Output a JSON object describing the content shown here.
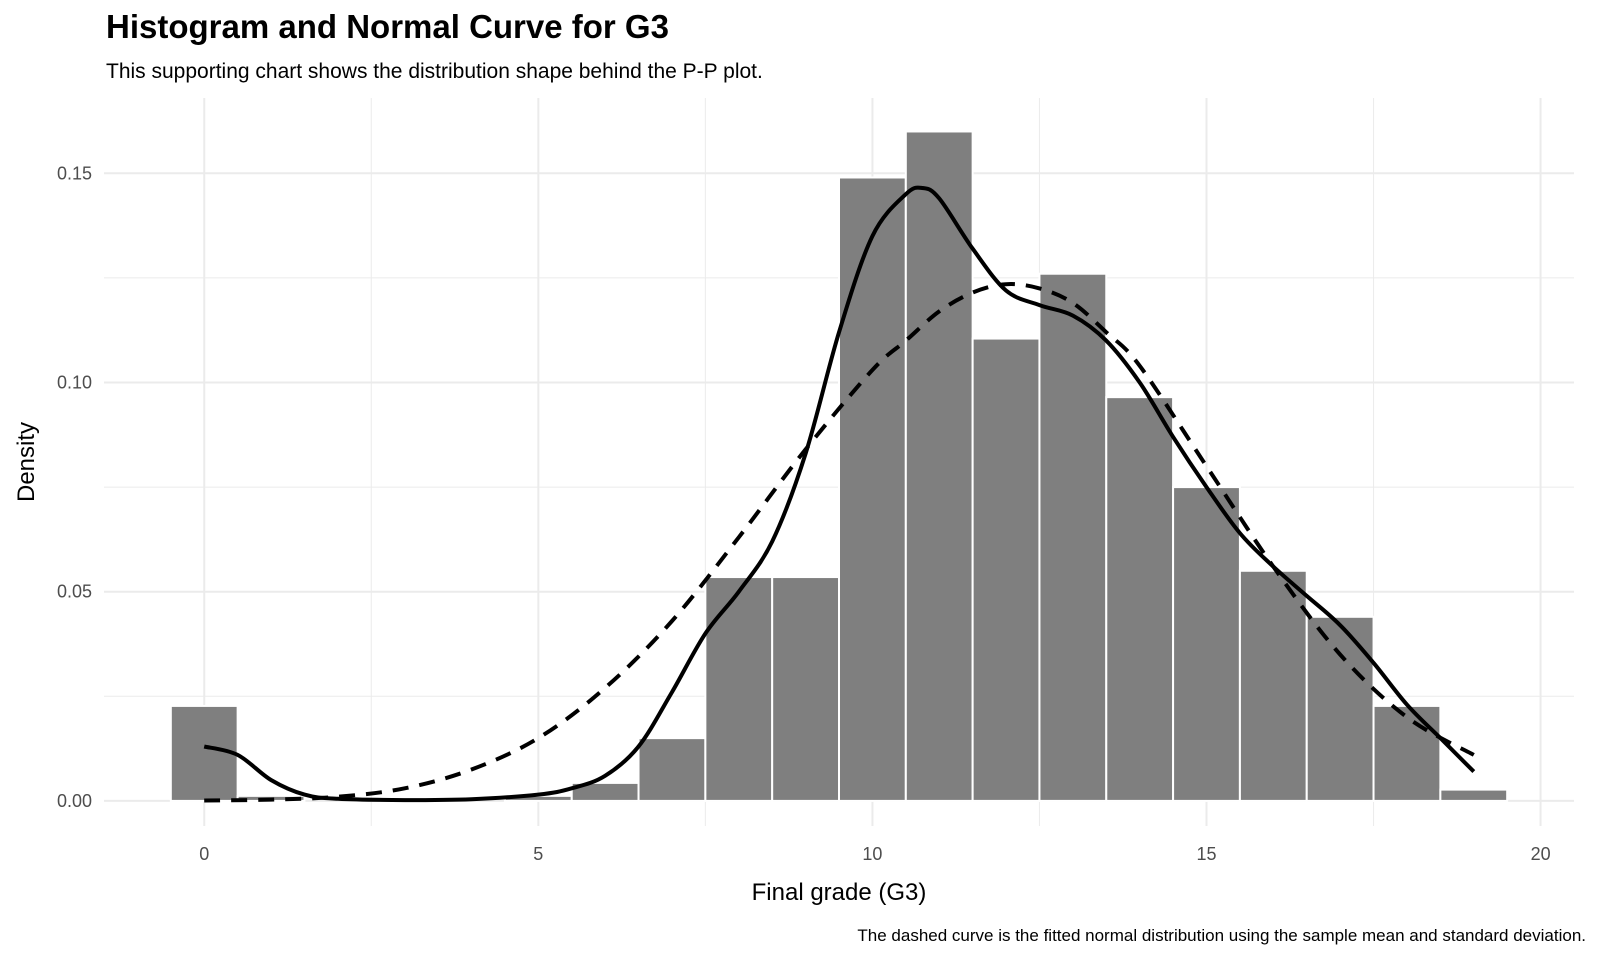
{
  "chart_data": {
    "type": "histogram",
    "title": "Histogram and Normal Curve for G3",
    "subtitle": "This supporting chart shows the distribution shape behind the P-P plot.",
    "caption": "The dashed curve is the fitted normal distribution using the sample mean and standard deviation.",
    "xlabel": "Final grade (G3)",
    "ylabel": "Density",
    "xlim": [
      -1.5,
      20.5
    ],
    "ylim": [
      -0.006,
      0.168
    ],
    "x_ticks": [
      0,
      5,
      10,
      15,
      20
    ],
    "y_ticks": [
      0,
      0.05,
      0.1,
      0.15
    ],
    "x_tick_labels": [
      "0",
      "5",
      "10",
      "15",
      "20"
    ],
    "y_tick_labels": [
      "0.00",
      "0.05",
      "0.10",
      "0.15"
    ],
    "grid": true,
    "bins": [
      {
        "center": 0,
        "density": 0.0227
      },
      {
        "center": 1,
        "density": 0.0012
      },
      {
        "center": 2,
        "density": 0.0
      },
      {
        "center": 3,
        "density": 0.0
      },
      {
        "center": 4,
        "density": 0.0
      },
      {
        "center": 5,
        "density": 0.0012
      },
      {
        "center": 6,
        "density": 0.0043
      },
      {
        "center": 7,
        "density": 0.015
      },
      {
        "center": 8,
        "density": 0.0535
      },
      {
        "center": 9,
        "density": 0.0535
      },
      {
        "center": 10,
        "density": 0.149
      },
      {
        "center": 11,
        "density": 0.16
      },
      {
        "center": 12,
        "density": 0.1105
      },
      {
        "center": 13,
        "density": 0.126
      },
      {
        "center": 14,
        "density": 0.0965
      },
      {
        "center": 15,
        "density": 0.075
      },
      {
        "center": 16,
        "density": 0.055
      },
      {
        "center": 17,
        "density": 0.044
      },
      {
        "center": 18,
        "density": 0.0227
      },
      {
        "center": 19,
        "density": 0.0027
      }
    ],
    "series": [
      {
        "style": "solid",
        "x": [
          0,
          0.5,
          1,
          1.5,
          2,
          3,
          4,
          5,
          5.5,
          6,
          6.5,
          7,
          7.5,
          8,
          8.5,
          9,
          9.5,
          10,
          10.5,
          10.75,
          11,
          11.5,
          12,
          12.5,
          13,
          13.5,
          14,
          14.5,
          15,
          15.5,
          16,
          16.5,
          17,
          17.5,
          18,
          18.5,
          19
        ],
        "y": [
          0.013,
          0.011,
          0.005,
          0.0015,
          0.0005,
          0.0002,
          0.0004,
          0.0015,
          0.003,
          0.006,
          0.013,
          0.026,
          0.04,
          0.05,
          0.062,
          0.083,
          0.112,
          0.135,
          0.145,
          0.1465,
          0.144,
          0.132,
          0.122,
          0.1185,
          0.116,
          0.11,
          0.1,
          0.087,
          0.075,
          0.064,
          0.056,
          0.049,
          0.042,
          0.033,
          0.023,
          0.015,
          0.007
        ]
      },
      {
        "style": "dashed",
        "x": [
          0,
          1,
          2,
          3,
          4,
          5,
          6,
          7,
          8,
          9,
          10,
          10.5,
          11,
          11.5,
          12,
          12.5,
          13,
          13.5,
          14,
          15,
          16,
          17,
          18,
          19
        ],
        "y": [
          0.0001,
          0.0003,
          0.001,
          0.003,
          0.0075,
          0.015,
          0.027,
          0.043,
          0.063,
          0.084,
          0.103,
          0.11,
          0.117,
          0.1215,
          0.1235,
          0.1225,
          0.119,
          0.112,
          0.104,
          0.08,
          0.056,
          0.035,
          0.02,
          0.011
        ]
      }
    ],
    "colors": {
      "bar_fill": "#7f7f7f",
      "bar_outline": "#ffffff",
      "curve": "#000000",
      "grid": "#ebebeb",
      "tick_text": "#4d4d4d"
    }
  }
}
